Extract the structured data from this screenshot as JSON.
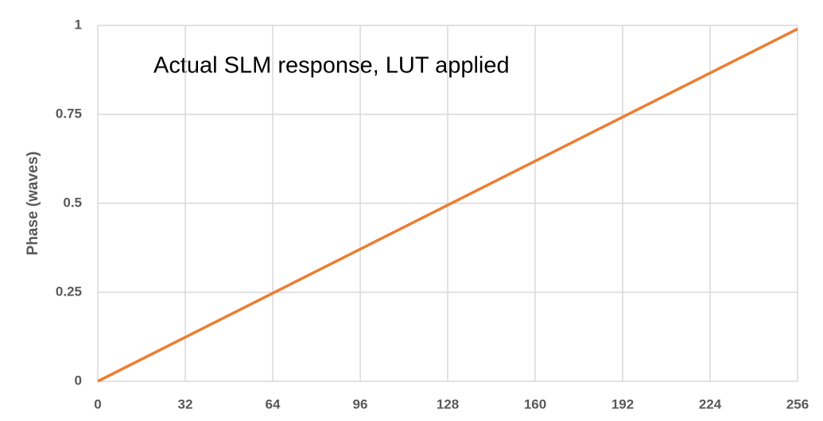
{
  "chart_data": {
    "type": "line",
    "title": "Actual SLM response, LUT applied",
    "y_label": "Phase (waves)",
    "x": [
      0,
      256
    ],
    "values": [
      0,
      0.99
    ],
    "color": "#ed7d31",
    "xlim": [
      0,
      256
    ],
    "xticks": [
      0,
      32,
      64,
      96,
      128,
      160,
      192,
      224,
      256
    ],
    "ylim": [
      0,
      1
    ],
    "yticks": [
      0,
      0.25,
      0.5,
      0.75,
      1
    ],
    "grid": true
  }
}
